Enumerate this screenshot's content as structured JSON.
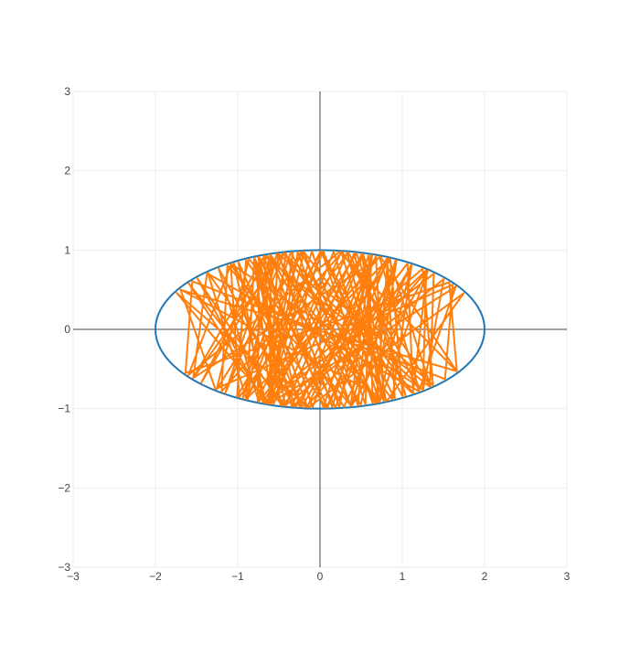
{
  "chart_data": {
    "type": "line",
    "title": "",
    "xlabel": "",
    "ylabel": "",
    "xlim": [
      -3,
      3
    ],
    "ylim": [
      -3,
      3
    ],
    "x_ticks": [
      -3,
      -2,
      -1,
      0,
      1,
      2,
      3
    ],
    "y_ticks": [
      -3,
      -2,
      -1,
      0,
      1,
      2,
      3
    ],
    "x_tick_labels": [
      "−3",
      "−2",
      "−1",
      "0",
      "1",
      "2",
      "3"
    ],
    "y_tick_labels": [
      "−3",
      "−2",
      "−1",
      "0",
      "1",
      "2",
      "3"
    ],
    "grid": true,
    "zero_lines": true,
    "legend": "none",
    "series": [
      {
        "kind": "ellipse",
        "color": "#1f77b4",
        "center": [
          0,
          0
        ],
        "semi_axis_x": 2,
        "semi_axis_y": 1
      },
      {
        "kind": "reflection-path",
        "color": "#ff7f0e",
        "x_extent": [
          -2,
          2
        ],
        "y_extent": [
          -1,
          1
        ],
        "bounces": 160,
        "start": [
          -1.7,
          0.5
        ],
        "start_angle_deg": -17
      }
    ]
  }
}
